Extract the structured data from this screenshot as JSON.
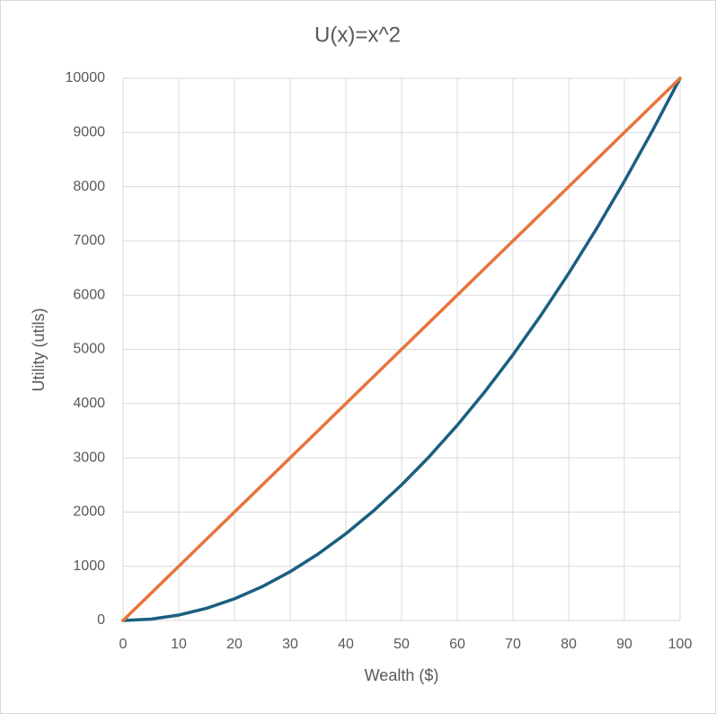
{
  "chart_data": {
    "type": "line",
    "title": "U(x)=x^2",
    "x_label": "Wealth ($)",
    "y_label": "Utility (utils)",
    "x": [
      0,
      5,
      10,
      15,
      20,
      25,
      30,
      35,
      40,
      45,
      50,
      55,
      60,
      65,
      70,
      75,
      80,
      85,
      90,
      95,
      100
    ],
    "series": [
      {
        "color": "#1a5f80",
        "values": [
          0,
          25,
          100,
          225,
          400,
          625,
          900,
          1225,
          1600,
          2025,
          2500,
          3025,
          3600,
          4225,
          4900,
          5625,
          6400,
          7225,
          8100,
          9025,
          10000
        ]
      },
      {
        "color": "#e8743b",
        "values": [
          0,
          500,
          1000,
          1500,
          2000,
          2500,
          3000,
          3500,
          4000,
          4500,
          5000,
          5500,
          6000,
          6500,
          7000,
          7500,
          8000,
          8500,
          9000,
          9500,
          10000
        ]
      }
    ],
    "xlim": [
      0,
      100
    ],
    "xticks": [
      0,
      10,
      20,
      30,
      40,
      50,
      60,
      70,
      80,
      90,
      100
    ],
    "ylim": [
      0,
      10000
    ],
    "yticks": [
      0,
      1000,
      2000,
      3000,
      4000,
      5000,
      6000,
      7000,
      8000,
      9000,
      10000
    ],
    "grid": true
  }
}
